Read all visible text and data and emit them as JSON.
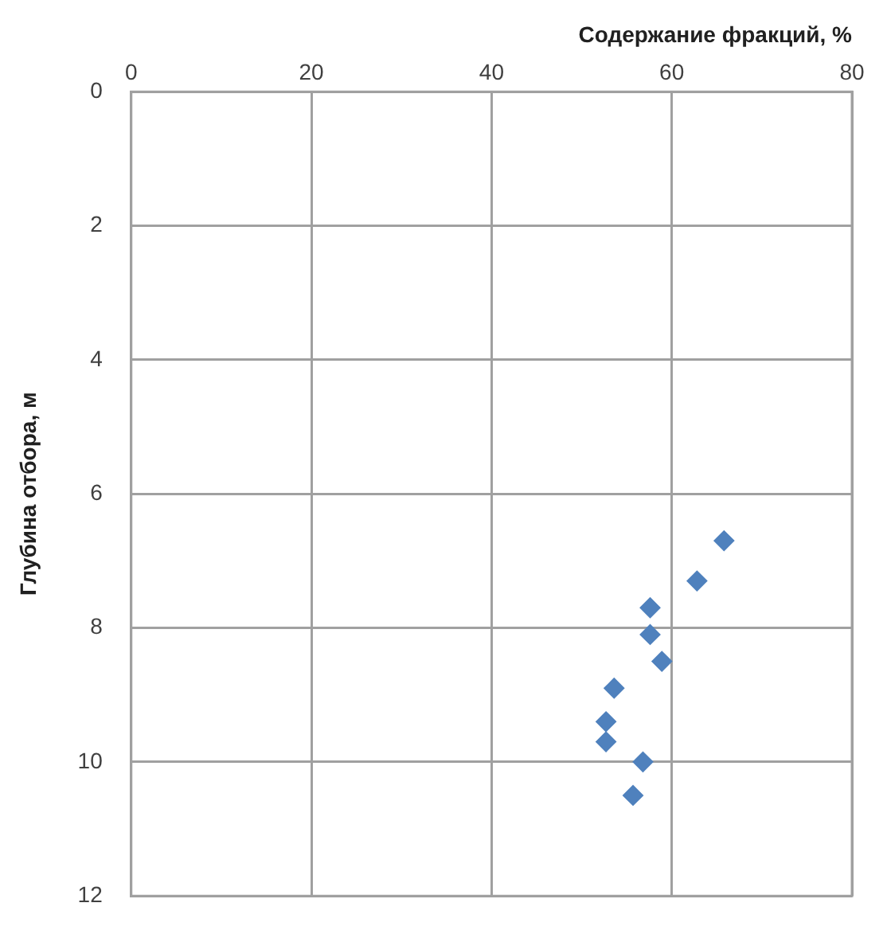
{
  "chart_data": {
    "type": "scatter",
    "xlabel": "Содержание фракций, %",
    "ylabel": "Глубина отбора, м",
    "x": [
      65.8,
      62.8,
      57.6,
      57.6,
      58.9,
      53.6,
      52.7,
      52.7,
      56.8,
      55.7
    ],
    "series": [
      {
        "color": "#4f81bd",
        "values": [
          6.7,
          7.3,
          7.7,
          8.1,
          8.5,
          8.9,
          9.4,
          9.7,
          10,
          10.5
        ]
      }
    ],
    "xlim": [
      0,
      80
    ],
    "xticks": [
      0,
      20,
      40,
      60,
      80
    ],
    "ylim": [
      12,
      0
    ],
    "yticks": [
      0,
      2,
      4,
      6,
      8,
      10,
      12
    ],
    "grid": true,
    "legend": false,
    "marker": "diamond"
  }
}
